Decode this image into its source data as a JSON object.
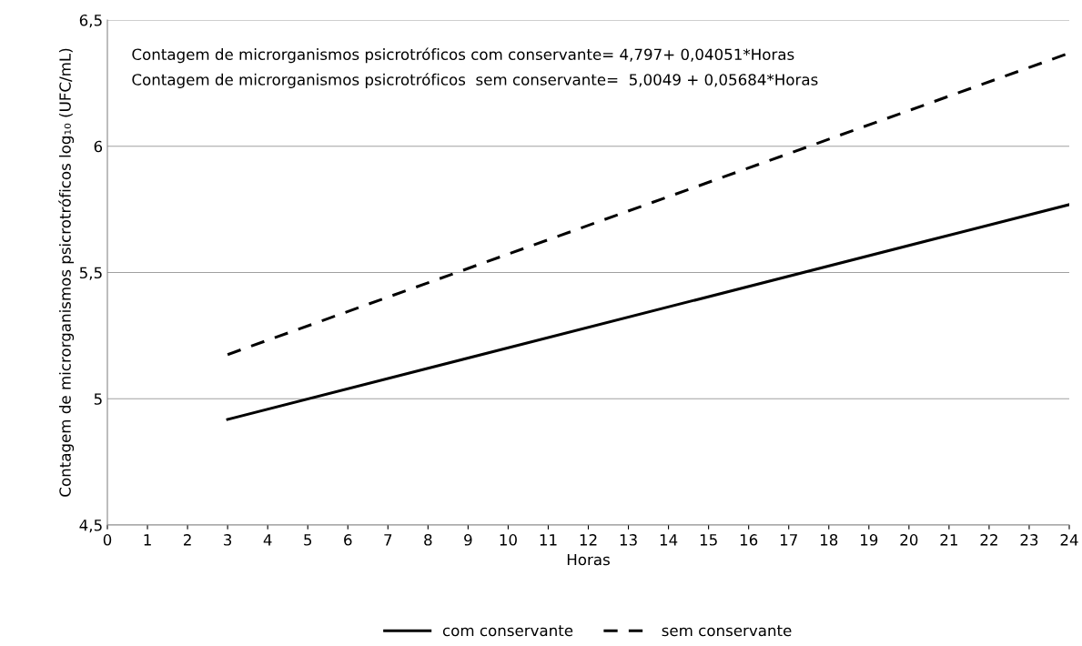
{
  "chart_data": {
    "type": "line",
    "xlabel": "Horas",
    "ylabel": "Contagem de microrganismos psicrotróficos log₁₀ (UFC/mL)",
    "annotations": [
      "Contagem de microrganismos psicrotróficos com conservante= 4,797+ 0,04051*Horas",
      "Contagem de microrganismos psicrotróficos  sem conservante=  5,0049 + 0,05684*Horas"
    ],
    "x": [
      3,
      24
    ],
    "series": [
      {
        "name": "com conservante",
        "color": "#000000",
        "values": [
          4.918,
          5.769
        ],
        "line_style": "solid"
      },
      {
        "name": "sem conservante",
        "color": "#000000",
        "values": [
          5.175,
          6.369
        ],
        "line_style": "dashed"
      }
    ],
    "xlim": [
      0,
      24
    ],
    "xticks": [
      0,
      1,
      2,
      3,
      4,
      5,
      6,
      7,
      8,
      9,
      10,
      11,
      12,
      13,
      14,
      15,
      16,
      17,
      18,
      19,
      20,
      21,
      22,
      23,
      24
    ],
    "ylim": [
      4.5,
      6.5
    ],
    "yticks": [
      {
        "value": 4.5,
        "label": "4,5"
      },
      5,
      {
        "value": 5.5,
        "label": "5,5"
      },
      6,
      {
        "value": 6.5,
        "label": "6,5"
      }
    ],
    "grid": "y",
    "legend": "bottom",
    "marker": "none"
  }
}
